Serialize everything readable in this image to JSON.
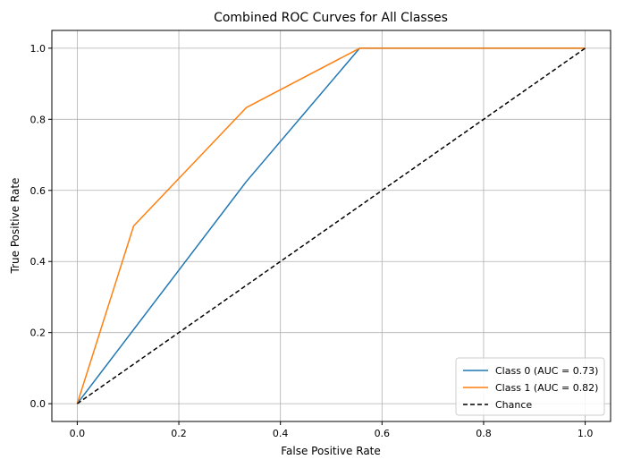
{
  "chart_data": {
    "type": "line",
    "title": "Combined ROC Curves for All Classes",
    "xlabel": "False Positive Rate",
    "ylabel": "True Positive Rate",
    "xlim": [
      -0.05,
      1.05
    ],
    "ylim": [
      -0.05,
      1.05
    ],
    "xticks": [
      0.0,
      0.2,
      0.4,
      0.6,
      0.8,
      1.0
    ],
    "yticks": [
      0.0,
      0.2,
      0.4,
      0.6,
      0.8,
      1.0
    ],
    "xtick_labels": [
      "0.0",
      "0.2",
      "0.4",
      "0.6",
      "0.8",
      "1.0"
    ],
    "ytick_labels": [
      "0.0",
      "0.2",
      "0.4",
      "0.6",
      "0.8",
      "1.0"
    ],
    "grid": true,
    "legend_position": "lower-right",
    "series": [
      {
        "name": "Class 0 (AUC = 0.73)",
        "color": "#1f77b4",
        "style": "solid",
        "x": [
          0.0,
          0.333,
          0.556,
          1.0
        ],
        "y": [
          0.0,
          0.625,
          1.0,
          1.0
        ]
      },
      {
        "name": "Class 1 (AUC = 0.82)",
        "color": "#ff7f0e",
        "style": "solid",
        "x": [
          0.0,
          0.111,
          0.333,
          0.556,
          1.0
        ],
        "y": [
          0.0,
          0.5,
          0.833,
          1.0,
          1.0
        ]
      },
      {
        "name": "Chance",
        "color": "#000000",
        "style": "dashed",
        "x": [
          0.0,
          1.0
        ],
        "y": [
          0.0,
          1.0
        ]
      }
    ]
  }
}
